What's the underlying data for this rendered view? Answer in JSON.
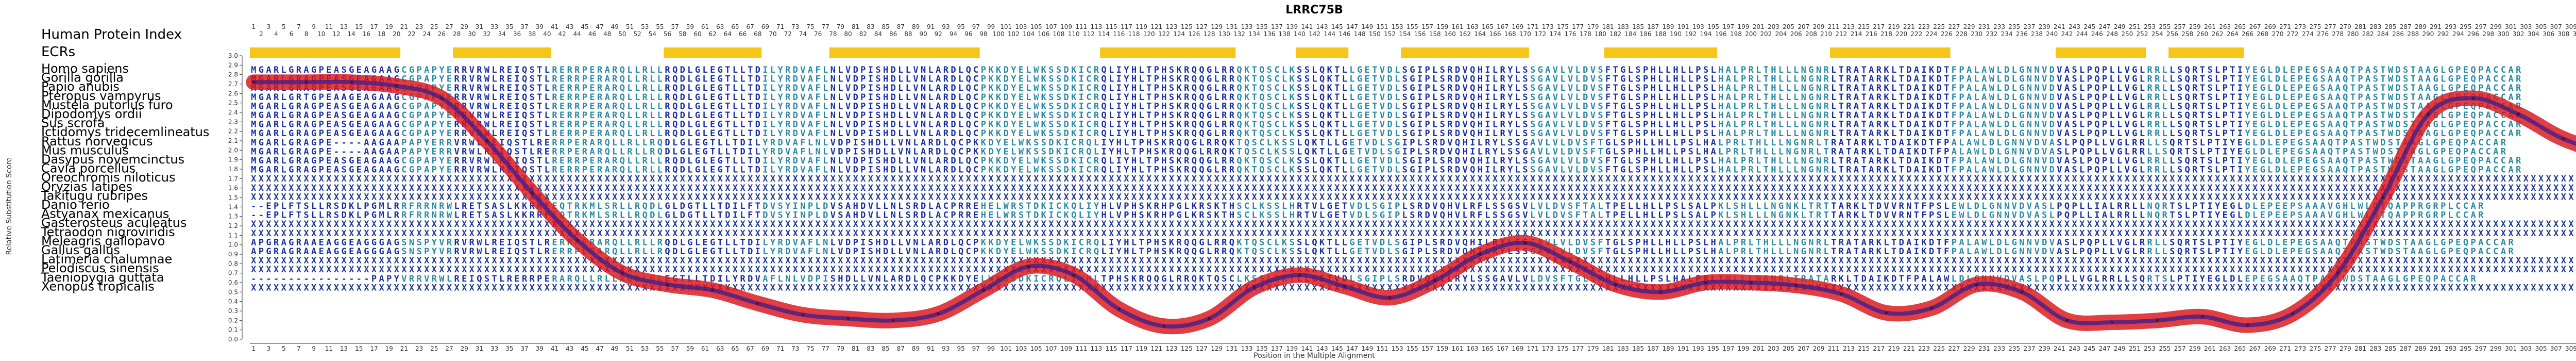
{
  "chart_data": {
    "type": "line",
    "title": "LRRC75B",
    "xlabel": "Position in the Multiple Alignment",
    "ylabel": "Relative Substitution Score",
    "legend_header": "Human Protein Index",
    "human_index_max": 316,
    "alignment_length": 316,
    "ylim": [
      0.0,
      3.0
    ],
    "yticks": [
      0.0,
      0.1,
      0.2,
      0.3,
      0.4,
      0.5,
      0.6,
      0.7,
      0.8,
      0.9,
      1.0,
      1.1,
      1.2,
      1.3,
      1.4,
      1.5,
      1.6,
      1.7,
      1.8,
      1.9,
      2.0,
      2.1,
      2.2,
      2.3,
      2.4,
      2.5,
      2.6,
      2.7,
      2.8,
      2.9,
      3.0
    ],
    "ecr_label": "ECRs",
    "ecrs": [
      [
        1,
        20
      ],
      [
        28,
        40
      ],
      [
        56,
        68
      ],
      [
        78,
        97
      ],
      [
        114,
        131
      ],
      [
        140,
        146
      ],
      [
        154,
        170
      ],
      [
        181,
        195
      ],
      [
        211,
        226
      ],
      [
        241,
        252
      ],
      [
        256,
        265
      ]
    ],
    "species": [
      "Homo sapiens",
      "Gorilla gorilla",
      "Papio anubis",
      "Pteropus vampyrus",
      "Mustela putorius furo",
      "Dipodomys ordii",
      "Sus scrofa",
      "Ictidomys tridecemlineatus",
      "Rattus norvegicus",
      "Mus musculus",
      "Dasypus novemcinctus",
      "Cavia porcellus",
      "Oreochromis niloticus",
      "Oryzias latipes",
      "Takifugu rubripes",
      "Danio rerio",
      "Astyanax mexicanus",
      "Gasterosteus aculeatus",
      "Tetraodon nigroviridis",
      "Meleagris gallopavo",
      "Gallus gallus",
      "Latimeria chalumnae",
      "Pelodiscus sinensis",
      "Taeniopygia guttata",
      "Xenopus tropicalis"
    ],
    "sequences": [
      "MGARLGRAGPEASGEAGAAGCGPAPYERRVRWLREIQSTLRERRPERARQLLRLLRQDLGLEGTLLTDILYRDVAFLNLVDPISHDLLVNLARDLQCPKKDYELWKSSDKICRQLIYHLTPHSKRQQGLRRQKTQSCLKSSLQKTLLGETVDLSGIPLSRDVQHILRYLSSGAVLVLDVSFTGLSPHLLHLLPSLHALPRLTHLLLNGNRLTRATARKLTDAIKDTFPALAWLDLGNNVDVASLPQPLLVGLRRLLSQRTSLPTIYEGLDLEPEGSAAQTPASTWDSTAAGLGPEQPACCAR",
      "MGARLGRAGPEASGEAGAAGCGPAPYERRVRWLREIQSTLRERRPERARQLLRLLRQDLGLEGTLLTDILYRDVAFLNLVDPISHDLLVNLARDLQCPKKDYELWKSSDKICRQLIYHLTPHSKRQQGLRRQKTQSCLKSSLQKTLLGETVDLSGIPLSRDVQHILRYLSSGAVLVLDVSFTGLSPHLLHLLPSLHALPRLTHLLLNGNRLTRATARKLTDAIKDTFPALAWLDLGNNVDVASLPQPLLVGLRRLLSQRTSLPTIYEGLDLEPEGSAAQTPASTWDSTAAGLGPEQPACCAR",
      "MGARLGRAGPEASGEAGAAGCGPAPYERRVRWLREIQSTLRERRPERARQLLRLLRQDLGLEGTLLTDILYRDVAFLNLVDPISHDLLVNLARDLQCPKKDYELWKSSDKICRQLIYHLTPHSKRQQGLRRQKTQSCLKSSLQKTLLGETVDLSGIPLSRDVQHILRYLSSGAVLVLDVSFTGLSPHLLHLLPSLHALPRLTHLLLNGNRLTRATARKLTDAIKDTFPALAWLDLGNNVDVASLPQPLLVGLRRLLSQRTSLPTIYEGLDLEPEGSAAQTPASTWDSTAAGLGPEQPACCAR",
      "MGARLGRTGPEAAGEAGAAGCGPAPYERRVRWLREIQSTLRERRPERARQLLRLLRQDLGLEGTLLTDILYRDVAFLNLVDPISHDLLVNLARDLQCPKKDYELWKSSDKICRQLIYHLTPHSKRQQGLRRQKTQSCLKSSLQKTLLGETVDLSGIPLSRDVQHILRYLSSGAVLVLDVSFTGLSPHLLHLLPSLHALPRLTHLLLNGNRLTRATARKLTDAIKDTFPALAWLDLGNNVDVASLPQPLLVGLRRLLSQRTSLPTIYEGLDLEPEGSAAQTPASTWDSTAAGLGPEQPACCAR",
      "MGARLGRAGPEASGEAGAAGCGPAPYERRVRWLREIQSTLRERRPERARQLLRLLRQDLGLEGTLLTDILYRDVAFLNLVDPISHDLLVNLARDLQCPKKDYELWKSSDKICRQLIYHLTPHSKRQQGLRRQKTQSCLKSSLQKTLLGETVDLSGIPLSRDVQHILRYLSSGAVLVLDVSFTGLSPHLLHLLPSLHALPRLTHLLLNGNRLTRATARKLTDAIKDTFPALAWLDLGNNVDVASLPQPLLVGLRRLLSQRTSLPTIYEGLDLEPEGSAAQTPASTWDSTAAGLGPEQPACCAR",
      "MGARLGRAGPEASGEAGAAGCGPAPYERRVRWLREIQSTLRERRPERARQLLRLLRQDLGLEGTLLTDILYRDVAFLNLVDPISHDLLVNLARDLQCPKKDYELWKSSDKICRQLIYHLTPHSKRQQGLRRQKTQSCLKSSLQKTLLGETVDLSGIPLSRDVQHILRYLSSGAVLVLDVSFTGLSPHLLHLLPSLHALPRLTHLLLNGNRLTRATARKLTDAIKDTFPALAWLDLGNNVDVASLPQPLLVGLRRLLSQRTSLPTIYEGLDLEPEGSAAQTPASTWDSTAAGLGPEQPACCAR",
      "MGARLGRAGPEASGEAGAAGCGPAPYERRVRWLREIQSTLRERRPERARQLLRLLRQDLGLEGTLLTDILYRDVAFLNLVDPISHDLLVNLARDLQCPKKDYELWKSSDKICRQLIYHLTPHSKRQQGLRRQKTQSCLKSSLQKTLLGETVDLSGIPLSRDVQHILRYLSSGAVLVLDVSFTGLSPHLLHLLPSLHALPRLTHLLLNGNRLTRATARKLTDAIKDTFPALAWLDLGNNVDVASLPQPLLVGLRRLLSQRTSLPTIYEGLDLEPEGSAAQTPASTWDSTAAGLGPEQPACCAR",
      "MGARLGRAGPEASGEAGAAGCGPAPYERRVRWLREIQSTLRERRPERARQLLRLLRQDLGLEGTLLTDILYRDVAFLNLVDPISHDLLVNLARDLQCPKKDYELWKSSDKICRQLIYHLTPHSKRQQGLRRQKTQSCLKSSLQKTLLGETVDLSGIPLSRDVQHILRYLSSGAVLVLDVSFTGLSPHLLHLLPSLHALPRLTHLLLNGNRLTRATARKLTDAIKDTFPALAWLDLGNNVDVASLPQPLLVGLRRLLSQRTSLPTIYEGLDLEPEGSAAQTPASTWDSTAAGLGPEQPACCAR",
      "MGARLGRAGPE----AAGAAPAPYERRVRWLREIQSTLRERRPERARQLLRLLRQDLGLEGTLLTDILYRDVAFLNLVDPISHDLLVNLARDLQCPKKDYELWKSSDKICRQLIYHLTPHSKRQQGLRRQKTQSCLKSSLQKTLLGETVDLSGIPLSRDVQHILRYLSSGAVLVLDVSFTGLSPHLLHLLPSLHALPRLTHLLLNGNRLTRATARKLTDAIKDTFPALAWLDLGNNVDVASLPQPLLVGLRRLLSQRTSLPTIYEGLDLEPEGSAAQTPASTWDSTAAGLGPEQPACCAR",
      "MGARLGRAGPE----AAGAAPAPYERRVRWLREIQSTLRERRPERARQLLRLLRQDLGLEGTLLTDILYRDVAFLNLVDPISHDLLVNLARDLQCPKKDYELWKSSDKICRQLIYHLTPHSKRQQGLRRQKTQSCLKSSLQKTLLGETVDLSGIPLSRDVQHILRYLSSGAVLVLDVSFTGLSPHLLHLLPSLHALPRLTHLLLNGNRLTRATARKLTDAIKDTFPALAWLDLGNNVDVASLPQPLLVGLRRLLSQRTSLPTIYEGLDLEPEGSAAQTPASTWDSTAAGLGPEQPACCAR",
      "MGARLGRAGPEASGEAGAAGCGPAPYERRVRWLREIQSTLRERRPERARQLLRLLRQDLGLEGTLLTDILYRDVAFLNLVDPISHDLLVNLARDLQCPKKDYELWKSSDKICRQLIYHLTPHSKRQQGLRRQKTQSCLKSSLQKTLLGETVDLSGIPLSRDVQHILRYLSSGAVLVLDVSFTGLSPHLLHLLPSLHALPRLTHLLLNGNRLTRATARKLTDAIKDTFPALAWLDLGNNVDVASLPQPLLVGLRRLLSQRTSLPTIYEGLDLEPEGSAAQTPASTWDSTAAGLGPEQPACCAR",
      "MGARLGRAGPEASGEAGAAGCGPAPYERRVRWLREIQSTLRERRPERARQLLRLLRQDLGLEGTLLTDILYRDVAFLNLVDPISHDLLVNLARDLQCPKKDYELWKSSDKICRQLIYHLTPHSKRQQGLRRQKTQSCLKSSLQKTLLGETVDLSGIPLSRDVQHILRYLSSGAVLVLDVSFTGLSPHLLHLLPSLHALPRLTHLLLNGNRLTRATARKLTDAIKDTFPALAWLDLGNNVDVASLPQPLLVGLRRLLSQRTSLPTIYEGLDLEPEGSAAQTPASTWDSTAAGLGPEQPACCAR",
      "XXXXXXXXXXXXXXXXXXXXXXXXXXXXXXXXXXXXXXXXXXXXXXXXXXXXXXXXXXXXXXXXXXXXXXXXXXXXXXXXXXXXXXXXXXXXXXXXXXXXXXXXXXXXXXXXXXXXXXXXXXXXXXXXXXXXXXXXXXXXXXXXXXXXXXXXXXXXXXXXXXXXXXXXXXXXXXXXXXXXXXXXXXXXXXXXXXXXXXXXXXXXXXXXXXXXXXXXXXXXXXXXXXXXXXXXXXXXXXXXXXXXXXXXXXXXXXXXXXXXXXXXXXXXXXXXXXXXXXXXXXXXXXXXXXXXXXXXXXXXXXXXXXXXXXXXXXXX",
      "XXXXXXXXXXXXXXXXXXXXXXXXXXXXXXXXXXXXXXXXXXXXXXXXXXXXXXXXXXXXXXXXXXXXXXXXXXXXXXXXXXXXXXXXXXXXXXXXXXXXXXXXXXXXXXXXXXXXXXXXXXXXXXXXXXXXXXXXXXXXXXXXXXXXXXXXXXXXXXXXXXXXXXXXXXXXXXXXXXXXXXXXXXXXXXXXXXXXXXXXXXXXXXXXXXXXXXXXXXXXXXXXXXXXXXXXXXXXXXXXXXXXXXXXXXXXXXXXXXXXXXXXXXXXXXXXXXXXXXXXXXXXXXXXXXXXXXXXXXXXXXXXXXXXXXXXXXX",
      "XXXXXXXXXXXXXXXXXXXXXXXXXXXXXXXXXXXXXXXXXXXXXXXXXXXXXXXXXXXXXXXXXXXXXXXXXXXXXXXXXXXXXXXXXXXXXXXXXXXXXXXXXXXXXXXXXXXXXXXXXXXXXXXXXXXXXXXXXXXXXXXXXXXXXXXXXXXXXXXXXXXXXXXXXXXXXXXXXXXXXXXXXXXXXXXXXXXXXXXXXXXXXXXXXXXXXXXXXXXXXXXXXXXXXXXXXXXXXXXXXXXXXXXXXXXXXXXXXXXXXXXXXXXXXXXXXXXXXXXXXXXXXXXXXXXXXXXXXXXXXXXXXXXXXXXXXXX",
      "--EPLFTSLLRSDKLPGMLRRFRRNRWLRETSASLKKRRFEQTRKMLSRLLRQDLGLDGTLLTDILFTDVSYINPLDVSAHDVLLNLSRDLACPRREHELWRSTDKICKQLIYHLVPHSKRHPGLKRSKTHSCLKSSLHRTVLGETVDLSGIPLSRDVQHVLRFLSSGSVLVLDVSFTALTPELLHLLPSLSALPKLSHLLLNGNKLTRTTARKLTDVVRNTFPSLEWLDLGNNVDVASLPQPLLIALRRLLNQRTSLPTIYEGLDLEPEEPSAAAVGHLWLQTQAPPRGRPLCCAR",
      "--EPLFTSLLRSDKLPGMLRRFRRNRWLRETSASLKKRRFEQTRKMLSRLLRQDLGLDGTLLTDILFTDVSYINPLDVSAHDVLLNLSRDLACPRREHELWRSTDKICKQLIYHLVPHSKRHPGLKRSKTHSCLKSSLHRTVLGETVDLSGIPLSRDVQHVLRFLSSGSVLVLDVSFTALTPELLHLLPSLSALPKLSHLLLNGNKLTRTTARKLTDVVRNTFPSLEWLDLGNNVDVASLPQPLLIALRRLLNQRTSLPTIYEGLDLEPEEPSAAAVGHLWLQTQAPPRGRPLCCAR",
      "XXXXXXXXXXXXXXXXXXXXXXXXXXXXXXXXXXXXXXXXXXXXXXXXXXXXXXXXXXXXXXXXXXXXXXXXXXXXXXXXXXXXXXXXXXXXXXXXXXXXXXXXXXXXXXXXXXXXXXXXXXXXXXXXXXXXXXXXXXXXXXXXXXXXXXXXXXXXXXXXXXXXXXXXXXXXXXXXXXXXXXXXXXXXXXXXXXXXXXXXXXXXXXXXXXXXXXXXXXXXXXXXXXXXXXXXXXXXXXXXXXXXXXXXXXXXXXXXXXXXXXXXXXXXXXXXXXXXXXXXXXXXXXXXXXXXXXXXXXXXXXXXXXXXXXXXXXXX",
      "XXXXXXXXXXXXXXXXXXXXXXXXXXXXXXXXXXXXXXXXXXXXXXXXXXXXXXXXXXXXXXXXXXXXXXXXXXXXXXXXXXXXXXXXXXXXXXXXXXXXXXXXXXXXXXXXXXXXXXXXXXXXXXXXXXXXXXXXXXXXXXXXXXXXXXXXXXXXXXXXXXXXXXXXXXXXXXXXXXXXXXXXXXXXXXXXXXXXXXXXXXXXXXXXXXXXXXXXXXXXXXXXXXXXXXXXXXXXXXXXXXXXXXXXXXXXXXXXXXXXXXXXXXXXXXXXXXXXXXXXXXXXXXXXXXXXXXXXXXXXXXXXXXXXXXXXXXXX",
      "APGRAGRAAEAGGEAGGGAGSNSPYVRRVRWLREIQSTLRERRPERARQLLRLLRQDLGLEGTLLTDILYRDVAFLNLVDPISHDLLVNLARDLQCPKKDYELWKSSDKICRQLIYHLTPHSKRQQGLRRQKTQSCLKSSLQKTLLGETVDLSGIPLSRDVQHILRYLSSGAVLVLDVSFTGLSPHLLHLLPSLHALPRLTHLLLNGNRLTRATARKLTDAIKDTFPALAWLDLGNNVDVASLPQPLLVGLRRLLSQRTSLPTIYEGLDLEPEGSAAQTPASTWDSTAAGLGPEQPACCAR",
      "APGRAGRAAEAGGEAGGGAGSNSPYVRRVRWLREIQSTLRERRPERARQLLRLLRQDLGLEGTLLTDILYRDVAFLNLVDPISHDLLVNLARDLQCPKKDYELWKSSDKICRQLIYHLTPHSKRQQGLRRQKTQSCLKSSLQKTLLGETVDLSGIPLSRDVQHILRYLSSGAVLVLDVSFTGLSPHLLHLLPSLHALPRLTHLLLNGNRLTRATARKLTDAIKDTFPALAWLDLGNNVDVASLPQPLLVGLRRLLSQRTSLPTIYEGLDLEPEGSAAQTPASTWDSTAAGLGPEQPACCAR",
      "XXXXXXXXXXXXXXXXXXXXXXXXXXXXXXXXXXXXXXXXXXXXXXXXXXXXXXXXXXXXXXXXXXXXXXXXXXXXXXXXXXXXXXXXXXXXXXXXXXXXXXXXXXXXXXXXXXXXXXXXXXXXXXXXXXXXXXXXXXXXXXXXXXXXXXXXXXXXXXXXXXXXXXXXXXXXXXXXXXXXXXXXXXXXXXXXXXXXXXXXXXXXXXXXXXXXXXXXXXXXXXXXXXXXXXXXXXXXXXXXXXXXXXXXXXXXXXXXXXXXXXXXXXXXXXXXXXXXXXXXXXXXXXXXXXXXXXXXXXXXXXXXXXXXXXXXXXXX",
      "XXXXXXXXXXXXXXXXXXXXXXXXXXXXXXXXXXXXXXXXXXXXXXXXXXXXXXXXXXXXXXXXXXXXXXXXXXXXXXXXXXXXXXXXXXXXXXXXXXXXXXXXXXXXXXXXXXXXXXXXXXXXXXXXXXXXXXXXXXXXXXXXXXXXXXXXXXXXXXXXXXXXXXXXXXXXXXXXXXXXXXXXXXXXXXXXXXXXXXXXXXXXXXXXXXXXXXXXXXXXXXXXXXXXXXXXXXXXXXXXXXXXXXXXXXXXXXXXXXXXXXXXXXXXXXXXXXXXXXXXXXXXXXXXXXXXXXXXXXXXXXXXXXXXXXXXXXXX",
      "----------------PAPYVRRVRWLREIQSTLRERRPERARQLLRLLRQDLGLEGTLLTDILYRDVAFLNLVDPISHDLLVNLARDLQCPKKDYELWKSSDKICRQLIYHLTPHSKRQQGLRRQKTQSCLKSSLQKTLLGETVDLSGIPLSRDVQHILRYLSSGAVLVLDVSFTGLSPHLLHLLPSLHALPRLTHLLLNGNRLTRATARKLTDAIKDTFPALAWLDLGNNVDVASLPQPLLVGLRRLLSQRTSLPTIYEGLDLEPEGSAAQTPASTWDSTAAGLGPEQPACCAR",
      "XXXXXXXXXXXXXXXXXXXXXXXXXXXXXXXXXXXXXXXXXXXXXXXXXXXXXXXXXXXXXXXXXXXXXXXXXXXXXXXXXXXXXXXXXXXXXXXXXXXXXXXXXXXXXXXXXXXXXXXXXXXXXXXXXXXXXXXXXXXXXXXXXXXXXXXXXXXXXXXXXXXXXXXXXXXXXXXXXXXXXXXXXXXXXXXXXXXXXXXXXXXXXXXXXXXXXXXXXXXXXXXXXXXXXXXXXXXXXXXXXXXXXXXXXXXXXXXXXXXXXXXXXXXXXXXXXXXXXXXXXXXXXXXXXXXXXXXXXXXXXXXXXXXXXXXXXXXX"
    ],
    "series": [
      {
        "x": [
          1,
          8,
          14,
          20,
          26,
          32,
          38,
          44,
          50,
          56,
          62,
          68,
          74,
          80,
          86,
          92,
          98,
          104,
          110,
          116,
          122,
          128,
          134,
          140,
          146,
          152,
          158,
          164,
          170,
          176,
          182,
          188,
          194,
          200,
          206,
          212,
          218,
          224,
          230,
          236,
          242,
          248,
          254,
          260,
          266,
          272,
          278,
          284,
          290,
          296,
          302,
          308,
          316
        ],
        "y": [
          2.72,
          2.72,
          2.72,
          2.68,
          2.55,
          2.1,
          1.55,
          1.05,
          0.7,
          0.58,
          0.52,
          0.38,
          0.26,
          0.22,
          0.2,
          0.27,
          0.52,
          0.77,
          0.68,
          0.32,
          0.14,
          0.22,
          0.55,
          0.68,
          0.56,
          0.44,
          0.62,
          0.9,
          1.02,
          0.82,
          0.58,
          0.5,
          0.6,
          0.6,
          0.57,
          0.48,
          0.28,
          0.33,
          0.58,
          0.5,
          0.2,
          0.18,
          0.2,
          0.24,
          0.15,
          0.27,
          0.7,
          1.5,
          2.38,
          2.55,
          2.38,
          2.12,
          1.9
        ]
      }
    ]
  }
}
